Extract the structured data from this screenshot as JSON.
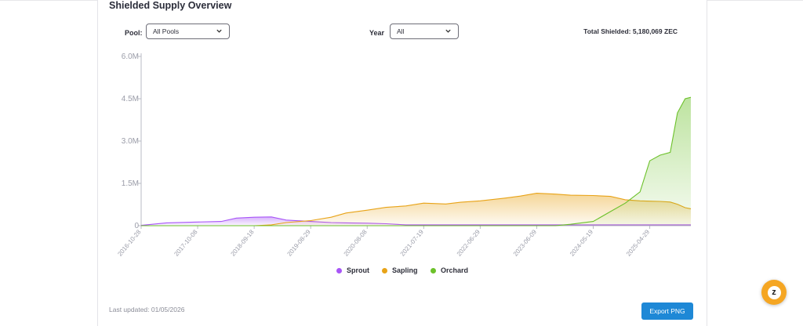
{
  "title": "Shielded Supply Overview",
  "controls": {
    "pool_label": "Pool:",
    "pool_value": "All Pools",
    "year_label": "Year",
    "year_value": "All",
    "total_text": "Total Shielded: 5,180,069 ZEC"
  },
  "footer": {
    "last_updated": "Last updated: 01/05/2026",
    "export_label": "Export PNG"
  },
  "floating": {
    "label": "z"
  },
  "colors": {
    "sprout": "#a855f7",
    "sapling": "#e8a317",
    "orchard": "#6cc12a",
    "axis": "#9a9ca8"
  },
  "chart_data": {
    "type": "area",
    "y_ticks": [
      "0",
      "1.5M",
      "3.0M",
      "4.5M",
      "6.0M"
    ],
    "ylim": [
      0,
      6000000
    ],
    "x_ticks": [
      "2016-10-28",
      "2017-10-08",
      "2018-09-18",
      "2019-08-29",
      "2020-08-08",
      "2021-07-19",
      "2022-06-29",
      "2023-06-09",
      "2024-05-19",
      "2025-04-29"
    ],
    "legend_position": "bottom",
    "x": [
      "2016-10-28",
      "2017-04-01",
      "2017-10-08",
      "2018-03-01",
      "2018-06-01",
      "2018-09-18",
      "2019-01-01",
      "2019-04-01",
      "2019-08-29",
      "2020-01-01",
      "2020-04-01",
      "2020-08-08",
      "2020-12-01",
      "2021-04-01",
      "2021-07-19",
      "2021-12-01",
      "2022-03-01",
      "2022-06-29",
      "2022-12-01",
      "2023-03-01",
      "2023-06-09",
      "2023-10-01",
      "2024-01-01",
      "2024-05-19",
      "2024-09-01",
      "2024-12-01",
      "2025-03-01",
      "2025-04-29",
      "2025-07-01",
      "2025-09-01",
      "2025-10-15",
      "2025-12-01",
      "2026-01-05"
    ],
    "series": [
      {
        "name": "Sprout",
        "values": [
          10000,
          100000,
          130000,
          150000,
          270000,
          300000,
          310000,
          200000,
          150000,
          110000,
          100000,
          90000,
          70000,
          30000,
          30000,
          30000,
          30000,
          30000,
          30000,
          30000,
          30000,
          30000,
          30000,
          30000,
          30000,
          30000,
          30000,
          30000,
          30000,
          30000,
          30000,
          30000,
          30000
        ]
      },
      {
        "name": "Sapling",
        "values": [
          0,
          0,
          0,
          0,
          0,
          0,
          30000,
          110000,
          180000,
          300000,
          450000,
          550000,
          650000,
          700000,
          800000,
          770000,
          830000,
          880000,
          980000,
          1050000,
          1150000,
          1120000,
          1080000,
          1070000,
          1040000,
          920000,
          880000,
          870000,
          860000,
          840000,
          760000,
          640000,
          600000
        ]
      },
      {
        "name": "Orchard",
        "values": [
          0,
          0,
          0,
          0,
          0,
          0,
          0,
          0,
          0,
          0,
          0,
          0,
          0,
          0,
          0,
          0,
          0,
          0,
          0,
          0,
          0,
          0,
          50000,
          150000,
          500000,
          800000,
          1200000,
          2300000,
          2500000,
          2600000,
          4000000,
          4500000,
          4550000
        ]
      }
    ]
  }
}
